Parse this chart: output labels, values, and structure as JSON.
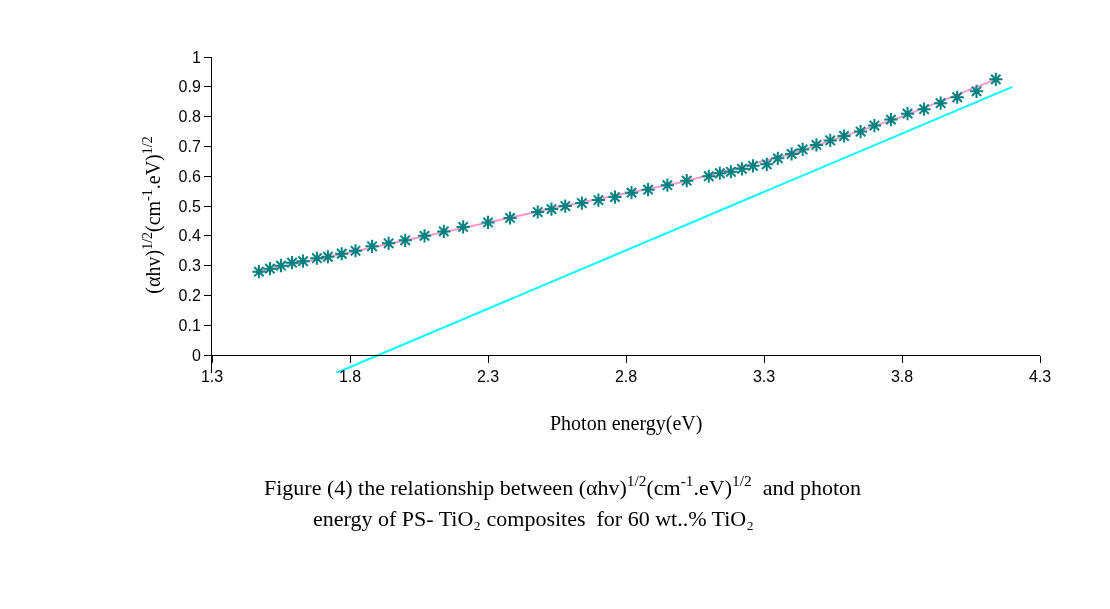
{
  "chart_data": {
    "type": "scatter",
    "xlabel": "Photon energy(eV)",
    "ylabel": "(αhv)$^{1/2}$(cm$^{-1}$.eV)$^{1/2}$",
    "annotations": [
      "Figure (4) the relationship between (αhv)$^{1/2}$(cm$^{-1}$.eV)$^{1/2}$  and photon",
      "energy of PS- TiO₂ composites  for 60 wt..% TiO₂"
    ],
    "xlim": [
      1.3,
      4.3
    ],
    "xticks": [
      1.3,
      1.8,
      2.3,
      2.8,
      3.3,
      3.8,
      4.3
    ],
    "ylim": [
      -0.06,
      1
    ],
    "yticks": [
      0,
      0.1,
      0.2,
      0.3,
      0.4,
      0.5,
      0.6,
      0.7,
      0.8,
      0.9,
      1
    ],
    "marker": "cross",
    "series": [
      {
        "type": "line",
        "color": "#ff99cc",
        "marker": "none",
        "x": [
          1.47,
          1.8,
          2.2,
          2.6,
          3.0,
          3.4,
          3.8,
          4.14
        ],
        "values": [
          0.28,
          0.345,
          0.425,
          0.505,
          0.58,
          0.675,
          0.8,
          0.925
        ]
      },
      {
        "color": "#008080",
        "x": [
          4.14,
          4.07,
          4.0,
          3.94,
          3.88,
          3.82,
          3.76,
          3.7,
          3.65,
          3.59,
          3.54,
          3.49,
          3.44,
          3.4,
          3.35,
          3.31,
          3.26,
          3.22,
          3.18,
          3.14,
          3.1,
          3.02,
          2.95,
          2.88,
          2.82,
          2.76,
          2.7,
          2.64,
          2.58,
          2.53,
          2.48,
          2.38,
          2.3,
          2.21,
          2.14,
          2.07,
          2.0,
          1.94,
          1.88,
          1.82,
          1.77,
          1.72,
          1.68,
          1.63,
          1.59,
          1.55,
          1.51,
          1.47
        ],
        "values": [
          0.925,
          0.885,
          0.865,
          0.845,
          0.825,
          0.81,
          0.79,
          0.77,
          0.75,
          0.735,
          0.72,
          0.705,
          0.69,
          0.675,
          0.66,
          0.64,
          0.635,
          0.625,
          0.615,
          0.61,
          0.6,
          0.585,
          0.57,
          0.555,
          0.545,
          0.53,
          0.52,
          0.51,
          0.5,
          0.49,
          0.48,
          0.46,
          0.445,
          0.43,
          0.415,
          0.4,
          0.385,
          0.375,
          0.365,
          0.35,
          0.34,
          0.33,
          0.325,
          0.315,
          0.31,
          0.3,
          0.29,
          0.28
        ]
      },
      {
        "type": "line",
        "color": "#00ffff",
        "marker": "none",
        "x": [
          1.75,
          4.2
        ],
        "values": [
          -0.06,
          0.9
        ]
      }
    ]
  }
}
